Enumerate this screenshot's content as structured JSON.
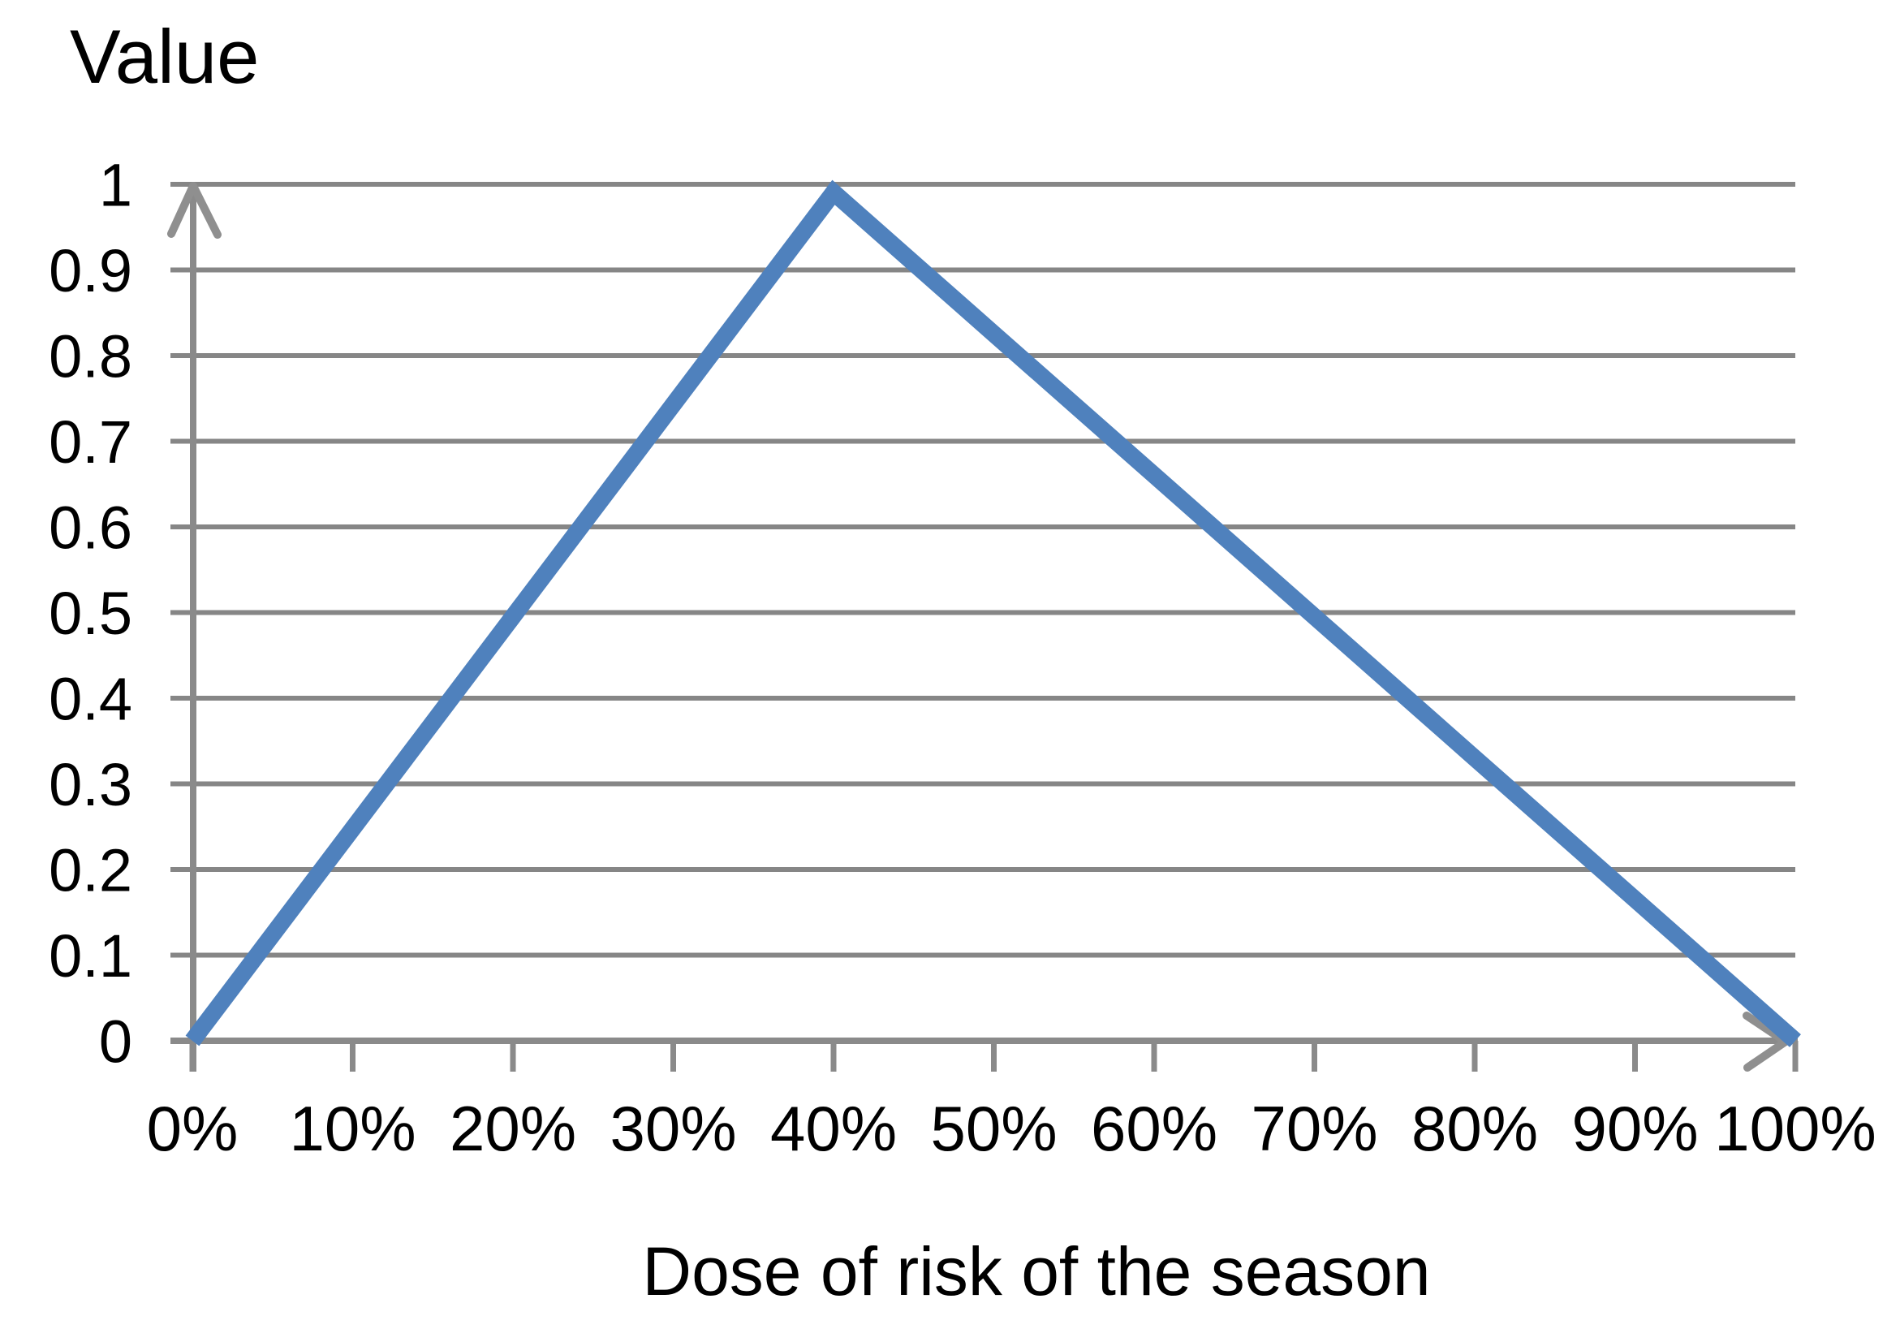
{
  "chart_data": {
    "type": "line",
    "title": "Value",
    "xlabel": "Dose of risk of the season",
    "ylabel": "Value",
    "categories": [
      "0%",
      "10%",
      "20%",
      "30%",
      "40%",
      "50%",
      "60%",
      "70%",
      "80%",
      "90%",
      "100%"
    ],
    "series": [
      {
        "name": "Value",
        "values": [
          0,
          0.25,
          0.5,
          0.75,
          1,
          0.8333,
          0.6667,
          0.5,
          0.3333,
          0.1667,
          0
        ]
      }
    ],
    "peak": {
      "x": "40%",
      "y": 1
    },
    "ylim": [
      0,
      1
    ],
    "y_tick_labels": [
      "0",
      "0.1",
      "0.2",
      "0.3",
      "0.4",
      "0.5",
      "0.6",
      "0.7",
      "0.8",
      "0.9",
      "1"
    ],
    "grid": true,
    "legend_position": "none",
    "axis_arrows": true,
    "colors": {
      "line": "#4F81BD",
      "grid": "#868686",
      "axis": "#8A8A8A",
      "arrow": "#8F8F8F",
      "text": "#000000",
      "background": "#FFFFFF"
    }
  }
}
